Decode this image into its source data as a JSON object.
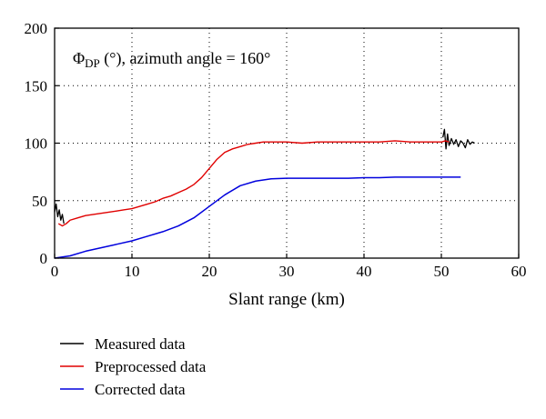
{
  "chart_data": {
    "type": "line",
    "title": "",
    "annotation": {
      "symbol": "Φ",
      "subscript": "DP",
      "rest": " (°), azimuth angle = 160°"
    },
    "xlabel": "Slant range (km)",
    "ylabel": "",
    "xlim": [
      0,
      60
    ],
    "ylim": [
      0,
      200
    ],
    "xticks": [
      0,
      10,
      20,
      30,
      40,
      50,
      60
    ],
    "yticks": [
      0,
      50,
      100,
      150,
      200
    ],
    "grid": "dotted",
    "legend_position": "below",
    "series": [
      {
        "name": "Measured data",
        "color": "#000000",
        "x": [
          0,
          0.2,
          0.4,
          0.6,
          0.8,
          1.0,
          1.2,
          50.2,
          50.4,
          50.6,
          50.8,
          51.0,
          51.3,
          51.6,
          51.9,
          52.2,
          52.5,
          52.8,
          53.1,
          53.4,
          53.7,
          54.0,
          54.3
        ],
        "y": [
          40,
          47,
          36,
          42,
          33,
          38,
          30,
          105,
          112,
          95,
          108,
          98,
          104,
          99,
          103,
          97,
          102,
          100,
          96,
          103,
          99,
          101,
          100
        ]
      },
      {
        "name": "Preprocessed data",
        "color": "#e00000",
        "x": [
          0.5,
          1,
          1.5,
          2,
          3,
          4,
          5,
          6,
          7,
          8,
          9,
          10,
          11,
          12,
          13,
          14,
          15,
          16,
          17,
          18,
          19,
          20,
          21,
          22,
          23,
          24,
          25,
          26,
          27,
          28,
          29,
          30,
          32,
          34,
          36,
          38,
          40,
          42,
          44,
          46,
          48,
          49,
          50,
          50.5,
          51
        ],
        "y": [
          30,
          28,
          30,
          33,
          35,
          37,
          38,
          39,
          40,
          41,
          42,
          43,
          45,
          47,
          49,
          52,
          54,
          57,
          60,
          64,
          70,
          78,
          86,
          92,
          95,
          97,
          99,
          100,
          101,
          101,
          101,
          101,
          100,
          101,
          101,
          101,
          101,
          101,
          102,
          101,
          101,
          101,
          101,
          102,
          101
        ]
      },
      {
        "name": "Corrected data",
        "color": "#0000dd",
        "x": [
          0,
          2,
          4,
          6,
          8,
          10,
          12,
          14,
          16,
          18,
          20,
          22,
          24,
          26,
          28,
          30,
          32,
          34,
          36,
          38,
          40,
          42,
          44,
          46,
          48,
          50,
          52.5
        ],
        "y": [
          0,
          2,
          6,
          9,
          12,
          15,
          19,
          23,
          28,
          35,
          45,
          55,
          63,
          67,
          69,
          69.5,
          69.5,
          69.5,
          69.5,
          69.5,
          70,
          70,
          70.5,
          70.5,
          70.5,
          70.5,
          70.5
        ]
      }
    ]
  }
}
